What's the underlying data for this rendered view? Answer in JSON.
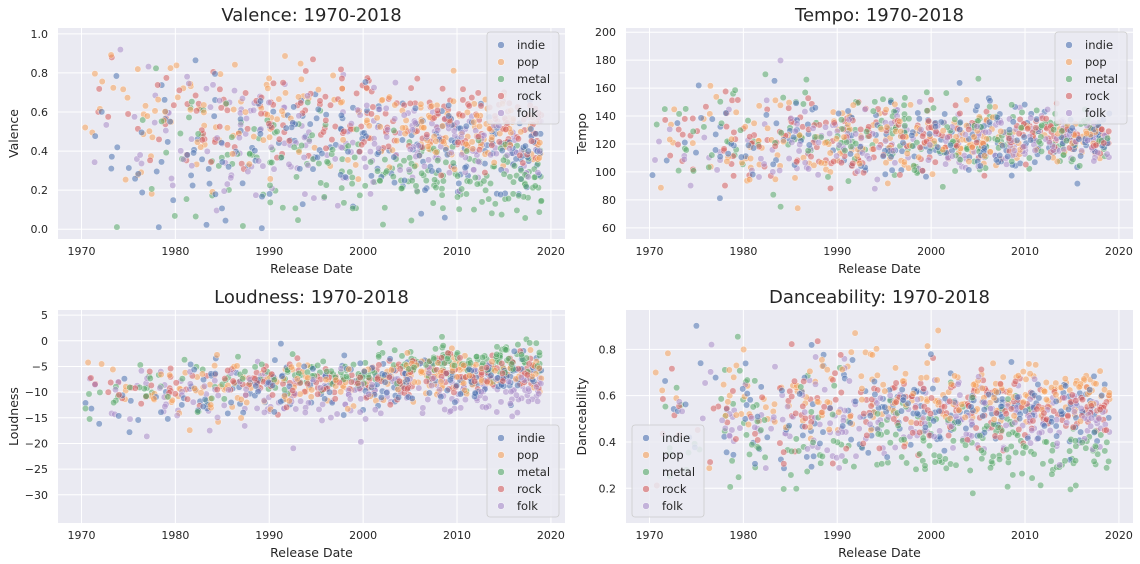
{
  "colors": {
    "indie": "#4c72b0",
    "pop": "#f5a05a",
    "metal": "#55a868",
    "rock": "#d65f5f",
    "folk": "#a98cc9",
    "plot_bg": "#eaeaf2",
    "grid": "#ffffff"
  },
  "chart_data": [
    {
      "id": "valence",
      "type": "scatter",
      "title": "Valence: 1970-2018",
      "xlabel": "Release Date",
      "ylabel": "Valence",
      "xlim": [
        1967.5,
        2021.5
      ],
      "ylim": [
        -0.05,
        1.03
      ],
      "xticks": [
        1970,
        1980,
        1990,
        2000,
        2010,
        2020
      ],
      "yticks": [
        0.0,
        0.2,
        0.4,
        0.6,
        0.8,
        1.0
      ],
      "ytick_labels": [
        "0.0",
        "0.2",
        "0.4",
        "0.6",
        "0.8",
        "1.0"
      ],
      "legend": "top-right",
      "grid": true,
      "series": [
        {
          "name": "indie",
          "center": 0.47,
          "trend": -0.0015,
          "spread_early": 0.24,
          "spread_late": 0.09,
          "min": 0.0,
          "max": 1.0
        },
        {
          "name": "pop",
          "center": 0.62,
          "trend": -0.003,
          "spread_early": 0.2,
          "spread_late": 0.09,
          "min": 0.0,
          "max": 1.0
        },
        {
          "name": "metal",
          "center": 0.45,
          "trend": -0.0045,
          "spread_early": 0.2,
          "spread_late": 0.08,
          "min": 0.0,
          "max": 1.0
        },
        {
          "name": "rock",
          "center": 0.62,
          "trend": -0.002,
          "spread_early": 0.2,
          "spread_late": 0.08,
          "min": 0.0,
          "max": 1.0
        },
        {
          "name": "folk",
          "center": 0.52,
          "trend": -0.002,
          "spread_early": 0.22,
          "spread_late": 0.09,
          "min": 0.0,
          "max": 1.0
        }
      ]
    },
    {
      "id": "tempo",
      "type": "scatter",
      "title": "Tempo: 1970-2018",
      "xlabel": "Release Date",
      "ylabel": "Tempo",
      "xlim": [
        1967.5,
        2021.5
      ],
      "ylim": [
        52,
        203
      ],
      "xticks": [
        1970,
        1980,
        1990,
        2000,
        2010,
        2020
      ],
      "yticks": [
        60,
        80,
        100,
        120,
        140,
        160,
        180,
        200
      ],
      "ytick_labels": [
        "60",
        "80",
        "100",
        "120",
        "140",
        "160",
        "180",
        "200"
      ],
      "legend": "top-right",
      "grid": true,
      "series": [
        {
          "name": "indie",
          "center": 124,
          "trend": 0.0,
          "spread_early": 22,
          "spread_late": 8,
          "min": 62,
          "max": 198
        },
        {
          "name": "pop",
          "center": 122,
          "trend": 0.0,
          "spread_early": 20,
          "spread_late": 7,
          "min": 62,
          "max": 198
        },
        {
          "name": "metal",
          "center": 125,
          "trend": 0.0,
          "spread_early": 24,
          "spread_late": 9,
          "min": 62,
          "max": 198
        },
        {
          "name": "rock",
          "center": 124,
          "trend": 0.0,
          "spread_early": 20,
          "spread_late": 7,
          "min": 62,
          "max": 198
        },
        {
          "name": "folk",
          "center": 122,
          "trend": 0.0,
          "spread_early": 22,
          "spread_late": 8,
          "min": 62,
          "max": 198
        }
      ]
    },
    {
      "id": "loudness",
      "type": "scatter",
      "title": "Loudness: 1970-2018",
      "xlabel": "Release Date",
      "ylabel": "Loudness",
      "xlim": [
        1967.5,
        2021.5
      ],
      "ylim": [
        -35.5,
        6
      ],
      "xticks": [
        1970,
        1980,
        1990,
        2000,
        2010,
        2020
      ],
      "yticks": [
        -30,
        -25,
        -20,
        -15,
        -10,
        -5,
        0,
        5
      ],
      "ytick_labels": [
        "−30",
        "−25",
        "−20",
        "−15",
        "−10",
        "−5",
        "0",
        "5"
      ],
      "legend": "bottom-right",
      "grid": true,
      "series": [
        {
          "name": "indie",
          "center": -11,
          "trend": 0.09,
          "spread_early": 3.5,
          "spread_late": 2.0,
          "min": -33,
          "max": 4
        },
        {
          "name": "pop",
          "center": -10,
          "trend": 0.08,
          "spread_early": 3.2,
          "spread_late": 1.6,
          "min": -33,
          "max": 4
        },
        {
          "name": "metal",
          "center": -10,
          "trend": 0.13,
          "spread_early": 3.0,
          "spread_late": 1.5,
          "min": -33,
          "max": 4
        },
        {
          "name": "rock",
          "center": -9.5,
          "trend": 0.07,
          "spread_early": 2.8,
          "spread_late": 1.4,
          "min": -33,
          "max": 4
        },
        {
          "name": "folk",
          "center": -12,
          "trend": 0.05,
          "spread_early": 3.5,
          "spread_late": 2.2,
          "min": -33,
          "max": 4
        }
      ]
    },
    {
      "id": "danceability",
      "type": "scatter",
      "title": "Danceability: 1970-2018",
      "xlabel": "Release Date",
      "ylabel": "Danceability",
      "xlim": [
        1967.5,
        2021.5
      ],
      "ylim": [
        0.05,
        0.97
      ],
      "xticks": [
        1970,
        1980,
        1990,
        2000,
        2010,
        2020
      ],
      "yticks": [
        0.2,
        0.4,
        0.6,
        0.8
      ],
      "ytick_labels": [
        "0.2",
        "0.4",
        "0.6",
        "0.8"
      ],
      "legend": "bottom-left",
      "grid": true,
      "series": [
        {
          "name": "indie",
          "center": 0.53,
          "trend": 0.0,
          "spread_early": 0.16,
          "spread_late": 0.06,
          "min": 0.1,
          "max": 0.92
        },
        {
          "name": "pop",
          "center": 0.57,
          "trend": 0.0008,
          "spread_early": 0.15,
          "spread_late": 0.05,
          "min": 0.1,
          "max": 0.92
        },
        {
          "name": "metal",
          "center": 0.48,
          "trend": -0.0025,
          "spread_early": 0.16,
          "spread_late": 0.06,
          "min": 0.1,
          "max": 0.92
        },
        {
          "name": "rock",
          "center": 0.54,
          "trend": 0.0,
          "spread_early": 0.14,
          "spread_late": 0.05,
          "min": 0.1,
          "max": 0.92
        },
        {
          "name": "folk",
          "center": 0.5,
          "trend": 0.0,
          "spread_early": 0.15,
          "spread_late": 0.06,
          "min": 0.1,
          "max": 0.92
        }
      ]
    }
  ]
}
